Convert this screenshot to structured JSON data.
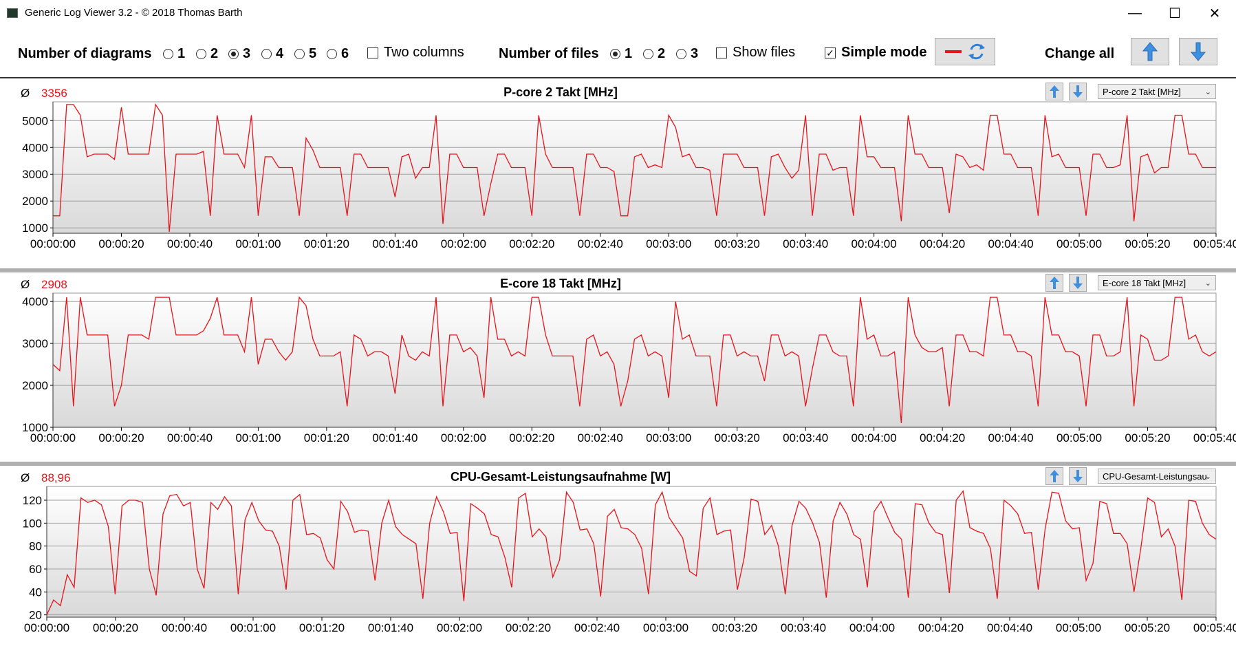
{
  "window": {
    "title": "Generic Log Viewer 3.2 - © 2018 Thomas Barth",
    "minimize": "—",
    "maximize": "☐",
    "close": "✕"
  },
  "toolbar": {
    "num_diagrams_label": "Number of diagrams",
    "diagram_options": [
      "1",
      "2",
      "3",
      "4",
      "5",
      "6"
    ],
    "diagram_selected": "3",
    "two_columns_label": "Two columns",
    "num_files_label": "Number of files",
    "file_options": [
      "1",
      "2",
      "3"
    ],
    "file_selected": "1",
    "show_files_label": "Show files",
    "simple_mode_label": "Simple mode",
    "simple_mode_checked": true,
    "change_all_label": "Change all"
  },
  "colors": {
    "series": "#e8141b",
    "accent_button": "#3d8fe0",
    "plot_bg_top": "#ffffff",
    "plot_bg_bottom": "#d9d9d9"
  },
  "panels": [
    {
      "avg_symbol": "Ø",
      "avg_value": "3356",
      "title": "P-core 2 Takt [MHz]",
      "select_value": "P-core 2 Takt [MHz]"
    },
    {
      "avg_symbol": "Ø",
      "avg_value": "2908",
      "title": "E-core 18 Takt [MHz]",
      "select_value": "E-core 18 Takt [MHz]"
    },
    {
      "avg_symbol": "Ø",
      "avg_value": "88,96",
      "title": "CPU-Gesamt-Leistungsaufnahme [W]",
      "select_value": "CPU-Gesamt-Leistungsau"
    }
  ],
  "chart_data": [
    {
      "type": "line",
      "title": "P-core 2 Takt [MHz]",
      "xlabel": "",
      "ylabel": "",
      "xlim": [
        0,
        340
      ],
      "ylim": [
        800,
        5700
      ],
      "yticks": [
        1000,
        2000,
        3000,
        4000,
        5000
      ],
      "xticks": [
        "00:00:00",
        "00:00:20",
        "00:00:40",
        "00:01:00",
        "00:01:20",
        "00:01:40",
        "00:02:00",
        "00:02:20",
        "00:02:40",
        "00:03:00",
        "00:03:20",
        "00:03:40",
        "00:04:00",
        "00:04:20",
        "00:04:40",
        "00:05:00",
        "00:05:20",
        "00:05:40"
      ],
      "grid": true,
      "series": [
        {
          "values": [
            1450,
            1450,
            5600,
            5600,
            5200,
            3650,
            3750,
            3750,
            3750,
            3550,
            5500,
            3750,
            3750,
            3750,
            3750,
            5600,
            5200,
            850,
            3750,
            3750,
            3750,
            3750,
            3850,
            1450,
            5200,
            3750,
            3750,
            3750,
            3250,
            5200,
            1450,
            3650,
            3650,
            3250,
            3250,
            3250,
            1450,
            4350,
            3900,
            3250,
            3250,
            3250,
            3250,
            1450,
            3750,
            3750,
            3250,
            3250,
            3250,
            3250,
            2150,
            3650,
            3750,
            2850,
            3250,
            3250,
            5200,
            1150,
            3750,
            3750,
            3250,
            3250,
            3250,
            1450,
            2650,
            3750,
            3750,
            3250,
            3250,
            3250,
            1450,
            5200,
            3750,
            3250,
            3250,
            3250,
            3250,
            1450,
            3750,
            3750,
            3250,
            3250,
            3100,
            1450,
            1450,
            3650,
            3750,
            3250,
            3350,
            3250,
            5200,
            4750,
            3650,
            3750,
            3250,
            3250,
            3150,
            1450,
            3750,
            3750,
            3750,
            3250,
            3250,
            3250,
            1450,
            3650,
            3750,
            3250,
            2850,
            3150,
            5200,
            1450,
            3750,
            3750,
            3150,
            3250,
            3250,
            1450,
            5200,
            3650,
            3650,
            3250,
            3250,
            3250,
            1250,
            5200,
            3750,
            3750,
            3250,
            3250,
            3250,
            1550,
            3750,
            3650,
            3250,
            3350,
            3150,
            5200,
            5200,
            3750,
            3750,
            3250,
            3250,
            3250,
            1450,
            5200,
            3650,
            3750,
            3250,
            3250,
            3250,
            1450,
            3750,
            3750,
            3250,
            3250,
            3350,
            5200,
            1250,
            3650,
            3750,
            3050,
            3250,
            3250,
            5200,
            5200,
            3750,
            3750,
            3250,
            3250,
            3250
          ]
        }
      ]
    },
    {
      "type": "line",
      "title": "E-core 18 Takt [MHz]",
      "xlabel": "",
      "ylabel": "",
      "xlim": [
        0,
        340
      ],
      "ylim": [
        1000,
        4200
      ],
      "yticks": [
        1000,
        2000,
        3000,
        4000
      ],
      "xticks": [
        "00:00:00",
        "00:00:20",
        "00:00:40",
        "00:01:00",
        "00:01:20",
        "00:01:40",
        "00:02:00",
        "00:02:20",
        "00:02:40",
        "00:03:00",
        "00:03:20",
        "00:03:40",
        "00:04:00",
        "00:04:20",
        "00:04:40",
        "00:05:00",
        "00:05:20",
        "00:05:40"
      ],
      "grid": true,
      "series": [
        {
          "values": [
            2500,
            2350,
            4100,
            1500,
            4100,
            3200,
            3200,
            3200,
            3200,
            1500,
            2000,
            3200,
            3200,
            3200,
            3100,
            4100,
            4100,
            4100,
            3200,
            3200,
            3200,
            3200,
            3300,
            3600,
            4100,
            3200,
            3200,
            3200,
            2800,
            4100,
            2500,
            3100,
            3100,
            2800,
            2600,
            2800,
            4100,
            3900,
            3100,
            2700,
            2700,
            2700,
            2800,
            1500,
            3200,
            3100,
            2700,
            2800,
            2800,
            2700,
            1800,
            3200,
            2700,
            2600,
            2800,
            2700,
            4100,
            1500,
            3200,
            3200,
            2800,
            2900,
            2700,
            1700,
            4100,
            3100,
            3100,
            2700,
            2800,
            2700,
            4100,
            4100,
            3200,
            2700,
            2700,
            2700,
            2700,
            1500,
            3100,
            3200,
            2700,
            2800,
            2500,
            1500,
            2100,
            3100,
            3200,
            2700,
            2800,
            2700,
            1700,
            4000,
            3100,
            3200,
            2700,
            2700,
            2700,
            1500,
            3200,
            3200,
            2700,
            2800,
            2700,
            2700,
            2100,
            3200,
            3200,
            2700,
            2800,
            2700,
            1500,
            2400,
            3200,
            3200,
            2800,
            2700,
            2700,
            1500,
            4100,
            3100,
            3200,
            2700,
            2700,
            2800,
            1100,
            4100,
            3200,
            2900,
            2800,
            2800,
            2900,
            1500,
            3200,
            3200,
            2800,
            2800,
            2700,
            4100,
            4100,
            3200,
            3200,
            2800,
            2800,
            2700,
            1500,
            4100,
            3200,
            3200,
            2800,
            2800,
            2700,
            1500,
            3200,
            3200,
            2700,
            2700,
            2800,
            4100,
            1500,
            3200,
            3100,
            2600,
            2600,
            2700,
            4100,
            4100,
            3100,
            3200,
            2800,
            2700,
            2800
          ]
        }
      ]
    },
    {
      "type": "line",
      "title": "CPU-Gesamt-Leistungsaufnahme [W]",
      "xlabel": "",
      "ylabel": "",
      "xlim": [
        0,
        340
      ],
      "ylim": [
        18,
        132
      ],
      "yticks": [
        20,
        40,
        60,
        80,
        100,
        120
      ],
      "xticks": [
        "00:00:00",
        "00:00:20",
        "00:00:40",
        "00:01:00",
        "00:01:20",
        "00:01:40",
        "00:02:00",
        "00:02:20",
        "00:02:40",
        "00:03:00",
        "00:03:20",
        "00:03:40",
        "00:04:00",
        "00:04:20",
        "00:04:40",
        "00:05:00",
        "00:05:20",
        "00:05:40"
      ],
      "grid": true,
      "series": [
        {
          "values": [
            20,
            33,
            28,
            55,
            44,
            122,
            118,
            120,
            116,
            97,
            38,
            115,
            120,
            120,
            118,
            60,
            37,
            108,
            124,
            125,
            115,
            118,
            60,
            43,
            118,
            112,
            123,
            115,
            38,
            103,
            118,
            102,
            94,
            93,
            80,
            42,
            120,
            125,
            90,
            91,
            87,
            68,
            60,
            119,
            110,
            92,
            94,
            93,
            50,
            100,
            120,
            97,
            90,
            86,
            82,
            34,
            100,
            123,
            110,
            91,
            92,
            32,
            117,
            113,
            108,
            90,
            88,
            70,
            44,
            122,
            126,
            88,
            95,
            88,
            53,
            68,
            127,
            118,
            94,
            95,
            82,
            36,
            106,
            112,
            96,
            95,
            90,
            78,
            38,
            116,
            127,
            105,
            96,
            87,
            58,
            54,
            113,
            122,
            90,
            93,
            94,
            42,
            70,
            121,
            119,
            90,
            98,
            80,
            38,
            98,
            119,
            113,
            100,
            83,
            35,
            102,
            118,
            108,
            90,
            86,
            44,
            110,
            119,
            105,
            92,
            86,
            35,
            117,
            116,
            100,
            92,
            90,
            39,
            120,
            128,
            96,
            93,
            91,
            78,
            34,
            120,
            115,
            108,
            91,
            92,
            42,
            95,
            127,
            126,
            102,
            95,
            96,
            50,
            65,
            119,
            117,
            91,
            91,
            82,
            40,
            78,
            122,
            118,
            88,
            95,
            80,
            33,
            120,
            119,
            100,
            90,
            86
          ]
        }
      ]
    }
  ]
}
